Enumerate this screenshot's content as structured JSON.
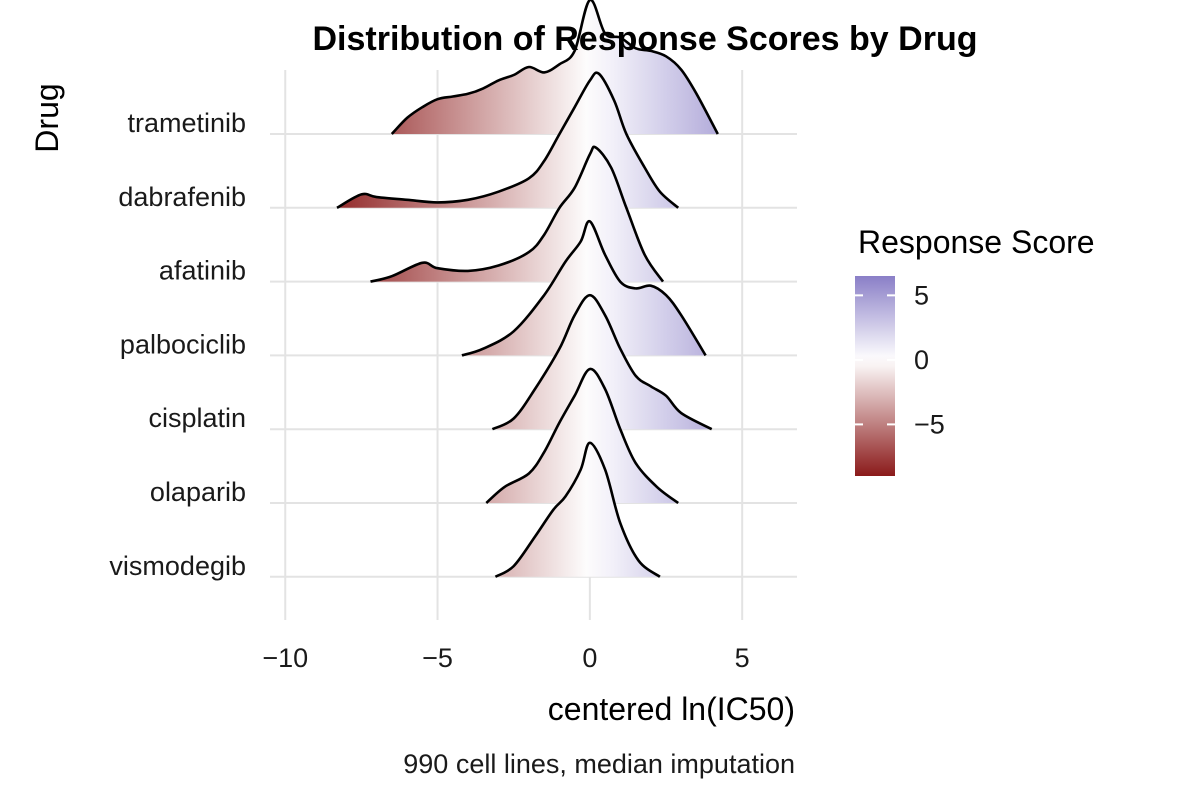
{
  "chart_data": {
    "type": "ridgeline",
    "title": "Distribution of Response Scores by Drug",
    "xlabel": "centered ln(IC50)",
    "ylabel": "Drug",
    "caption": "990 cell lines, median imputation",
    "xlim": [
      -10.5,
      6.8
    ],
    "x_ticks": [
      -10,
      -5,
      0,
      5
    ],
    "x_tick_labels": [
      "−10",
      "−5",
      "0",
      "5"
    ],
    "grid": true,
    "legend": {
      "title": "Response Score",
      "position": "right",
      "range": [
        -9,
        6.5
      ],
      "ticks": [
        5,
        0,
        -5
      ],
      "tick_labels": [
        "5",
        "0",
        "−5"
      ],
      "colors": {
        "low": "#8b1a1a",
        "mid": "#ffffff",
        "high": "#8a7fc7"
      }
    },
    "series": [
      {
        "name": "trametinib",
        "density": [
          [
            -6.5,
            0.0
          ],
          [
            -6.0,
            0.12
          ],
          [
            -5.5,
            0.2
          ],
          [
            -5.0,
            0.26
          ],
          [
            -4.5,
            0.28
          ],
          [
            -4.0,
            0.3
          ],
          [
            -3.5,
            0.34
          ],
          [
            -3.0,
            0.4
          ],
          [
            -2.5,
            0.44
          ],
          [
            -2.0,
            0.5
          ],
          [
            -1.5,
            0.46
          ],
          [
            -1.0,
            0.52
          ],
          [
            -0.5,
            0.62
          ],
          [
            0.0,
            1.0
          ],
          [
            0.5,
            0.75
          ],
          [
            1.0,
            0.72
          ],
          [
            1.5,
            0.64
          ],
          [
            2.0,
            0.62
          ],
          [
            2.5,
            0.58
          ],
          [
            3.0,
            0.48
          ],
          [
            3.5,
            0.3
          ],
          [
            4.2,
            0.0
          ]
        ]
      },
      {
        "name": "dabrafenib",
        "density": [
          [
            -8.3,
            0.0
          ],
          [
            -7.5,
            0.1
          ],
          [
            -7.0,
            0.08
          ],
          [
            -6.0,
            0.06
          ],
          [
            -5.0,
            0.04
          ],
          [
            -4.0,
            0.06
          ],
          [
            -3.0,
            0.12
          ],
          [
            -2.0,
            0.22
          ],
          [
            -1.5,
            0.35
          ],
          [
            -1.0,
            0.55
          ],
          [
            -0.5,
            0.75
          ],
          [
            0.0,
            0.95
          ],
          [
            0.3,
            1.0
          ],
          [
            0.8,
            0.8
          ],
          [
            1.2,
            0.55
          ],
          [
            1.8,
            0.3
          ],
          [
            2.3,
            0.12
          ],
          [
            2.9,
            0.0
          ]
        ]
      },
      {
        "name": "afatinib",
        "density": [
          [
            -7.2,
            0.0
          ],
          [
            -6.5,
            0.04
          ],
          [
            -5.5,
            0.14
          ],
          [
            -5.0,
            0.1
          ],
          [
            -4.0,
            0.08
          ],
          [
            -3.0,
            0.12
          ],
          [
            -2.0,
            0.22
          ],
          [
            -1.5,
            0.35
          ],
          [
            -1.0,
            0.55
          ],
          [
            -0.5,
            0.7
          ],
          [
            0.0,
            0.95
          ],
          [
            0.2,
            1.0
          ],
          [
            0.7,
            0.85
          ],
          [
            1.2,
            0.55
          ],
          [
            1.8,
            0.2
          ],
          [
            2.4,
            0.0
          ]
        ]
      },
      {
        "name": "palbociclib",
        "density": [
          [
            -4.2,
            0.0
          ],
          [
            -3.5,
            0.05
          ],
          [
            -2.5,
            0.18
          ],
          [
            -1.5,
            0.45
          ],
          [
            -0.8,
            0.7
          ],
          [
            -0.3,
            0.85
          ],
          [
            0.0,
            1.0
          ],
          [
            0.5,
            0.75
          ],
          [
            1.0,
            0.55
          ],
          [
            1.5,
            0.5
          ],
          [
            2.0,
            0.52
          ],
          [
            2.5,
            0.45
          ],
          [
            3.0,
            0.3
          ],
          [
            3.8,
            0.0
          ]
        ]
      },
      {
        "name": "cisplatin",
        "density": [
          [
            -3.2,
            0.0
          ],
          [
            -2.5,
            0.08
          ],
          [
            -1.8,
            0.3
          ],
          [
            -1.0,
            0.6
          ],
          [
            -0.5,
            0.85
          ],
          [
            0.0,
            1.0
          ],
          [
            0.5,
            0.85
          ],
          [
            1.0,
            0.6
          ],
          [
            1.5,
            0.4
          ],
          [
            2.0,
            0.32
          ],
          [
            2.5,
            0.25
          ],
          [
            3.0,
            0.12
          ],
          [
            4.0,
            0.0
          ]
        ]
      },
      {
        "name": "olaparib",
        "density": [
          [
            -3.4,
            0.0
          ],
          [
            -2.8,
            0.12
          ],
          [
            -2.0,
            0.22
          ],
          [
            -1.5,
            0.38
          ],
          [
            -1.0,
            0.6
          ],
          [
            -0.5,
            0.8
          ],
          [
            0.0,
            1.0
          ],
          [
            0.5,
            0.85
          ],
          [
            1.0,
            0.55
          ],
          [
            1.5,
            0.3
          ],
          [
            2.2,
            0.12
          ],
          [
            2.9,
            0.0
          ]
        ]
      },
      {
        "name": "vismodegib",
        "density": [
          [
            -3.1,
            0.0
          ],
          [
            -2.5,
            0.08
          ],
          [
            -1.8,
            0.3
          ],
          [
            -1.2,
            0.5
          ],
          [
            -0.8,
            0.6
          ],
          [
            -0.3,
            0.8
          ],
          [
            0.0,
            1.0
          ],
          [
            0.5,
            0.8
          ],
          [
            1.0,
            0.4
          ],
          [
            1.6,
            0.12
          ],
          [
            2.3,
            0.0
          ]
        ]
      }
    ]
  }
}
